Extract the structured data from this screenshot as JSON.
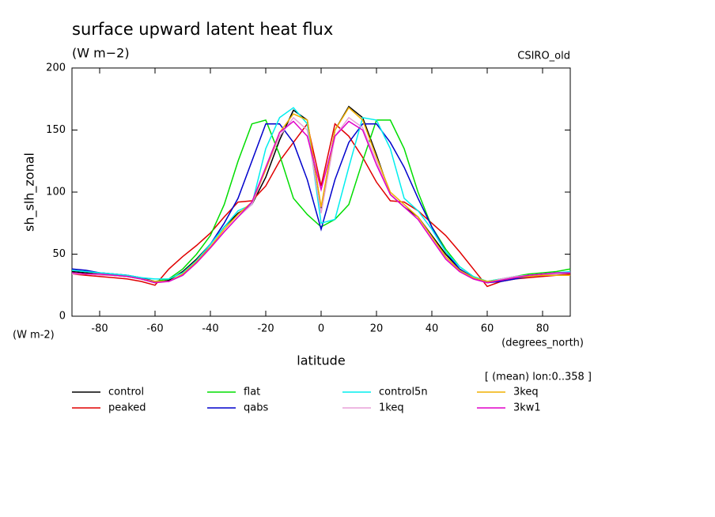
{
  "chart_data": {
    "type": "line",
    "title": "surface upward latent heat flux",
    "subtitle": "(W m−2)",
    "dataset_label": "CSIRO_old",
    "y_label": "sh_slh_zonal",
    "y_units": "(W m-2)",
    "x_label": "latitude",
    "x_units": "(degrees_north)",
    "annotation": "[ (mean) lon:0..358 ]",
    "xlim": [
      -90,
      90
    ],
    "xticks": [
      -80,
      -60,
      -40,
      -20,
      0,
      20,
      40,
      60,
      80
    ],
    "ylim": [
      0,
      200
    ],
    "yticks": [
      0,
      50,
      100,
      150,
      200
    ],
    "x": [
      -90,
      -85,
      -80,
      -75,
      -70,
      -65,
      -60,
      -55,
      -50,
      -45,
      -40,
      -35,
      -30,
      -25,
      -20,
      -15,
      -10,
      -5,
      0,
      5,
      10,
      15,
      20,
      25,
      30,
      35,
      40,
      45,
      50,
      55,
      60,
      65,
      70,
      75,
      80,
      85,
      90
    ],
    "series": [
      {
        "name": "control",
        "color": "#000000",
        "values": [
          36,
          35,
          34,
          33,
          32,
          30,
          27,
          29,
          36,
          46,
          58,
          72,
          83,
          90,
          112,
          142,
          166,
          158,
          87,
          150,
          169,
          160,
          130,
          98,
          88,
          80,
          65,
          50,
          38,
          31,
          27,
          29,
          31,
          32,
          33,
          34,
          34
        ]
      },
      {
        "name": "peaked",
        "color": "#e00000",
        "values": [
          34,
          33,
          32,
          31,
          30,
          28,
          25,
          38,
          48,
          57,
          67,
          80,
          92,
          93,
          105,
          125,
          140,
          155,
          105,
          155,
          145,
          128,
          108,
          93,
          92,
          85,
          75,
          65,
          52,
          38,
          24,
          28,
          30,
          31,
          32,
          33,
          34
        ]
      },
      {
        "name": "flat",
        "color": "#00dd00",
        "values": [
          37,
          36,
          35,
          34,
          33,
          31,
          28,
          30,
          38,
          50,
          65,
          90,
          125,
          155,
          158,
          130,
          95,
          82,
          72,
          78,
          90,
          125,
          158,
          158,
          135,
          100,
          72,
          54,
          40,
          32,
          28,
          30,
          32,
          34,
          35,
          36,
          38
        ]
      },
      {
        "name": "qabs",
        "color": "#0000cc",
        "values": [
          38,
          37,
          35,
          34,
          33,
          31,
          28,
          28,
          33,
          44,
          58,
          75,
          95,
          125,
          155,
          155,
          140,
          110,
          70,
          110,
          140,
          155,
          155,
          140,
          120,
          95,
          72,
          52,
          38,
          31,
          27,
          28,
          30,
          32,
          33,
          34,
          35
        ]
      },
      {
        "name": "control5n",
        "color": "#00eeee",
        "values": [
          37,
          36,
          35,
          34,
          33,
          31,
          30,
          30,
          35,
          45,
          58,
          72,
          85,
          90,
          135,
          160,
          168,
          155,
          75,
          78,
          120,
          160,
          158,
          135,
          95,
          85,
          70,
          52,
          40,
          32,
          28,
          30,
          32,
          33,
          34,
          35,
          36
        ]
      },
      {
        "name": "1keq",
        "color": "#e8a0d8",
        "values": [
          34,
          34,
          33,
          33,
          32,
          30,
          28,
          28,
          33,
          43,
          55,
          68,
          80,
          90,
          118,
          145,
          160,
          150,
          83,
          145,
          160,
          152,
          125,
          98,
          88,
          78,
          62,
          47,
          36,
          30,
          27,
          30,
          32,
          33,
          34,
          34,
          35
        ]
      },
      {
        "name": "3keq",
        "color": "#f0b000",
        "values": [
          35,
          34,
          34,
          33,
          32,
          30,
          28,
          28,
          34,
          44,
          56,
          70,
          82,
          92,
          118,
          148,
          163,
          158,
          88,
          150,
          168,
          158,
          128,
          100,
          90,
          80,
          64,
          48,
          37,
          31,
          28,
          29,
          31,
          32,
          33,
          33,
          33
        ]
      },
      {
        "name": "3kw1",
        "color": "#e000c8",
        "values": [
          35,
          34,
          34,
          33,
          32,
          30,
          27,
          28,
          33,
          43,
          55,
          68,
          80,
          92,
          120,
          148,
          157,
          145,
          102,
          145,
          157,
          150,
          122,
          98,
          88,
          78,
          62,
          46,
          36,
          30,
          27,
          29,
          31,
          33,
          34,
          35,
          35
        ]
      }
    ]
  }
}
